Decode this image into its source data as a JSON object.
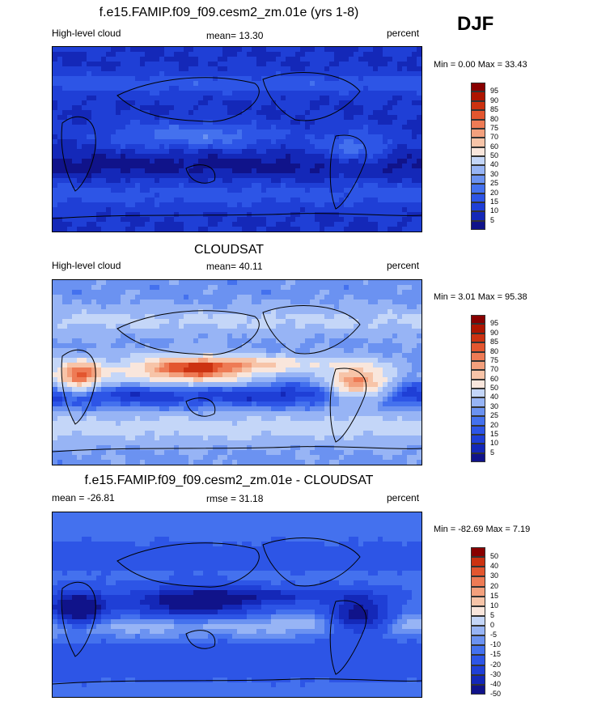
{
  "season": "DJF",
  "palette_model": [
    "#10138a",
    "#1428b8",
    "#1f3fd6",
    "#2d55e6",
    "#4471ee",
    "#6b92f1",
    "#97b4f5",
    "#c4d6f8",
    "#f9e6dc",
    "#f7c4a8",
    "#f3a07d",
    "#ee7b55",
    "#e3562f",
    "#cc3211",
    "#ad1500",
    "#880000"
  ],
  "palette_diff": [
    "#10138a",
    "#1428b8",
    "#1f3fd6",
    "#2d55e6",
    "#4471ee",
    "#6b92f1",
    "#97b4f5",
    "#c4d6f8",
    "#f9e6dc",
    "#f7c4a8",
    "#f3a07d",
    "#ee7b55",
    "#e3562f",
    "#cc3211",
    "#880000"
  ],
  "chart_data": [
    {
      "type": "heatmap",
      "title": "f.e15.FAMIP.f09_f09.cesm2_zm.01e (yrs 1-8)",
      "left_label": "High-level cloud",
      "center_label": "mean=  13.30",
      "units": "percent",
      "minmax": "Min =    0.00 Max =  33.43",
      "levels": [
        "95",
        "90",
        "85",
        "80",
        "75",
        "70",
        "60",
        "50",
        "40",
        "30",
        "25",
        "20",
        "15",
        "10",
        "5"
      ],
      "field": "model"
    },
    {
      "type": "heatmap",
      "title": "CLOUDSAT",
      "left_label": "High-level cloud",
      "center_label": "mean=  40.11",
      "units": "percent",
      "minmax": "Min =    3.01 Max =  95.38",
      "levels": [
        "95",
        "90",
        "85",
        "80",
        "75",
        "70",
        "60",
        "50",
        "40",
        "30",
        "25",
        "20",
        "15",
        "10",
        "5"
      ],
      "field": "obs"
    },
    {
      "type": "heatmap",
      "title": "f.e15.FAMIP.f09_f09.cesm2_zm.01e - CLOUDSAT",
      "left_label": "mean = -26.81",
      "center_label": "rmse =  31.18",
      "units": "percent",
      "minmax": "Min = -82.69 Max =    7.19",
      "levels": [
        "50",
        "40",
        "30",
        "20",
        "15",
        "10",
        "5",
        "0",
        "-5",
        "-10",
        "-15",
        "-20",
        "-30",
        "-40",
        "-50"
      ],
      "field": "diff"
    }
  ]
}
